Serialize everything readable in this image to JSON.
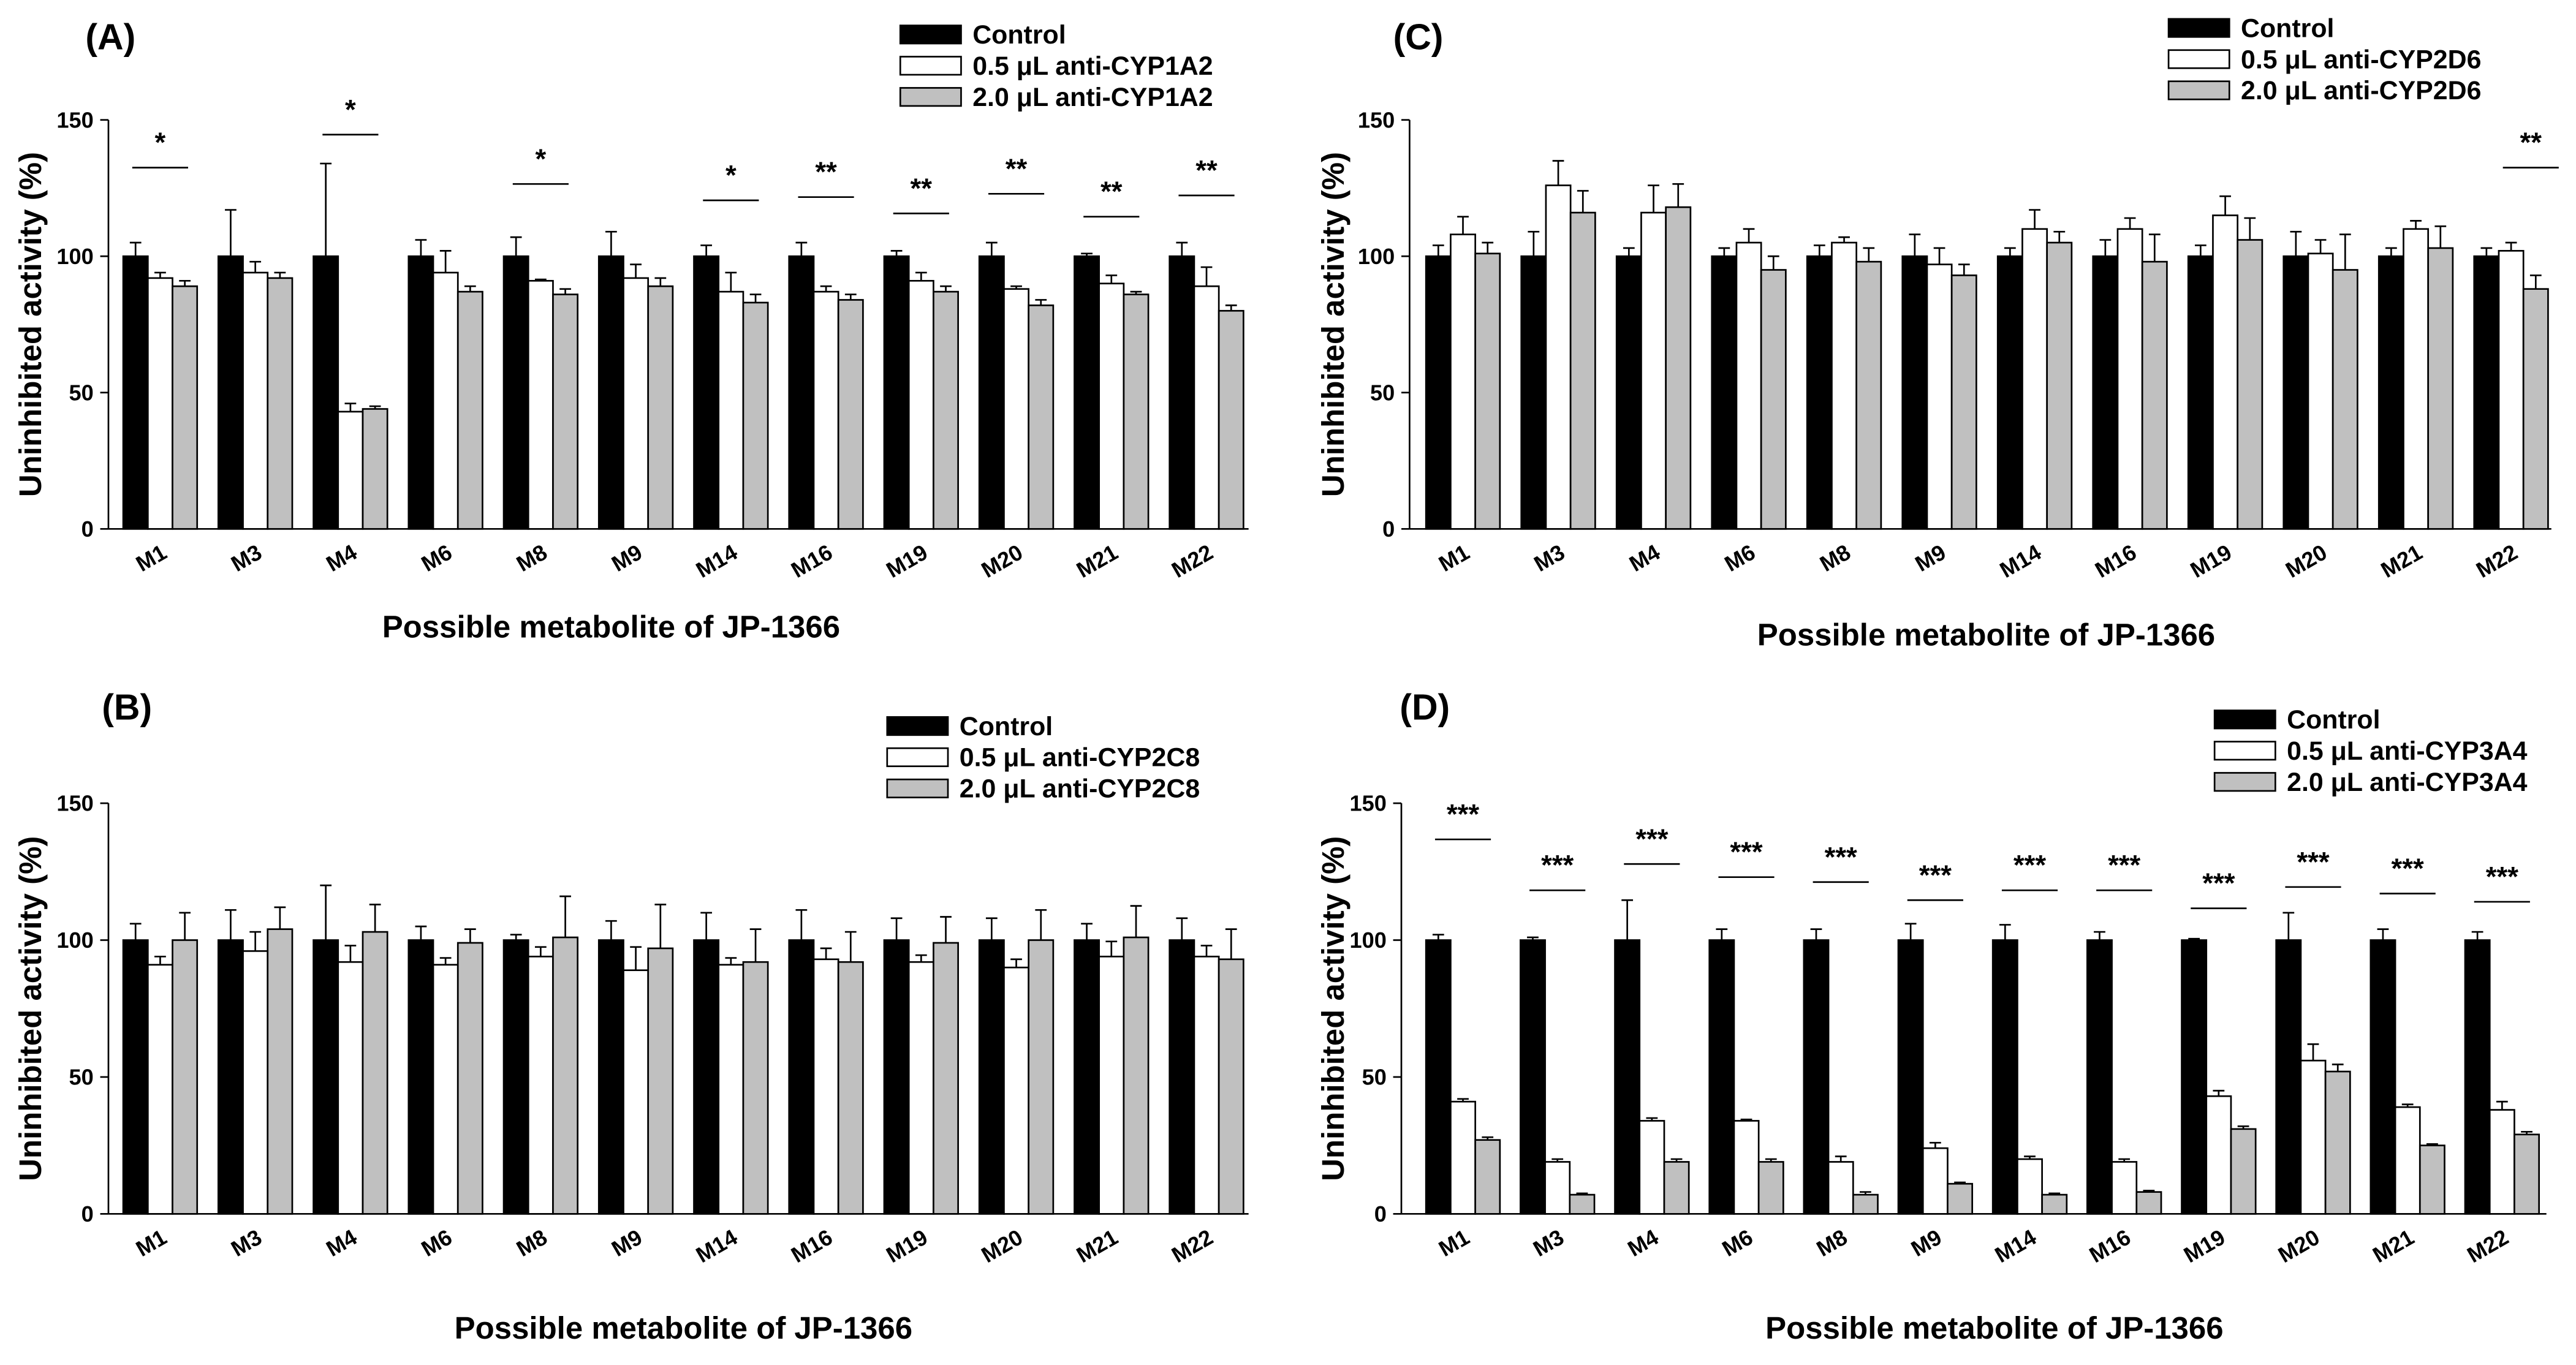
{
  "chart_data": [
    {
      "panel_label": "(A)",
      "type": "bar",
      "categories": [
        "M1",
        "M3",
        "M4",
        "M6",
        "M8",
        "M9",
        "M14",
        "M16",
        "M19",
        "M20",
        "M21",
        "M22"
      ],
      "xlabel": "Possible metabolite of JP-1366",
      "ylabel": "Uninhibited activity (%)",
      "ylim": [
        0,
        150
      ],
      "yticks": [
        0,
        50,
        100,
        150
      ],
      "grid": false,
      "legend_position": "top-right",
      "series": [
        {
          "name": "Control",
          "color": "#000000",
          "values": [
            100,
            100,
            100,
            100,
            100,
            100,
            100,
            100,
            100,
            100,
            100,
            100
          ],
          "errors": [
            5,
            17,
            34,
            6,
            7,
            9,
            4,
            5,
            2,
            5,
            1,
            5
          ]
        },
        {
          "name": "0.5 μL anti-CYP1A2",
          "color": "#ffffff",
          "values": [
            92,
            94,
            43,
            94,
            91,
            92,
            87,
            87,
            91,
            88,
            90,
            89
          ],
          "errors": [
            2,
            4,
            3,
            8,
            0.5,
            5,
            7,
            2,
            3,
            1,
            3,
            7
          ]
        },
        {
          "name": "2.0 μL anti-CYP1A2",
          "color": "#c0c0c0",
          "values": [
            89,
            92,
            44,
            87,
            86,
            89,
            83,
            84,
            87,
            82,
            86,
            80
          ],
          "errors": [
            2,
            2,
            1,
            2,
            2,
            3,
            3,
            2,
            2,
            2,
            1,
            2
          ]
        }
      ],
      "significance": [
        "*",
        null,
        "*",
        null,
        "*",
        null,
        "*",
        "**",
        "**",
        "**",
        "**",
        "**"
      ]
    },
    {
      "panel_label": "(B)",
      "type": "bar",
      "categories": [
        "M1",
        "M3",
        "M4",
        "M6",
        "M8",
        "M9",
        "M14",
        "M16",
        "M19",
        "M20",
        "M21",
        "M22"
      ],
      "xlabel": "Possible metabolite of JP-1366",
      "ylabel": "Uninhibited activity (%)",
      "ylim": [
        0,
        150
      ],
      "yticks": [
        0,
        50,
        100,
        150
      ],
      "grid": false,
      "legend_position": "top-right",
      "series": [
        {
          "name": "Control",
          "color": "#000000",
          "values": [
            100,
            100,
            100,
            100,
            100,
            100,
            100,
            100,
            100,
            100,
            100,
            100
          ],
          "errors": [
            6,
            11,
            20,
            5,
            2,
            7,
            10,
            11,
            8,
            8,
            6,
            8
          ]
        },
        {
          "name": "0.5 μL anti-CYP2C8",
          "color": "#ffffff",
          "values": [
            91,
            96,
            92,
            91,
            94,
            89,
            91,
            93,
            92,
            90,
            94,
            94
          ],
          "errors": [
            3,
            7,
            6,
            2.5,
            3.5,
            8.5,
            2.5,
            4,
            2.5,
            3,
            5.5,
            4
          ]
        },
        {
          "name": "2.0 μL anti-CYP2C8",
          "color": "#c0c0c0",
          "values": [
            100,
            104,
            103,
            99,
            101,
            97,
            92,
            92,
            99,
            100,
            101,
            93
          ],
          "errors": [
            10,
            8,
            10,
            5,
            15,
            16,
            12,
            11,
            9.5,
            11,
            11.5,
            11
          ]
        }
      ],
      "significance": [
        null,
        null,
        null,
        null,
        null,
        null,
        null,
        null,
        null,
        null,
        null,
        null
      ]
    },
    {
      "panel_label": "(C)",
      "type": "bar",
      "categories": [
        "M1",
        "M3",
        "M4",
        "M6",
        "M8",
        "M9",
        "M14",
        "M16",
        "M19",
        "M20",
        "M21",
        "M22"
      ],
      "xlabel": "Possible metabolite of JP-1366",
      "ylabel": "Uninhibited activity (%)",
      "ylim": [
        0,
        150
      ],
      "yticks": [
        0,
        50,
        100,
        150
      ],
      "grid": false,
      "legend_position": "top-right",
      "series": [
        {
          "name": "Control",
          "color": "#000000",
          "values": [
            100,
            100,
            100,
            100,
            100,
            100,
            100,
            100,
            100,
            100,
            100,
            100
          ],
          "errors": [
            4,
            9,
            3,
            3,
            4,
            8,
            3,
            6,
            4,
            9,
            3,
            3
          ]
        },
        {
          "name": "0.5 μL anti-CYP2D6",
          "color": "#ffffff",
          "values": [
            108,
            126,
            116,
            105,
            105,
            97,
            110,
            110,
            115,
            101,
            110,
            102
          ],
          "errors": [
            6.5,
            9,
            10,
            5,
            2,
            6,
            7,
            4,
            7,
            5,
            3,
            3
          ]
        },
        {
          "name": "2.0 μL anti-CYP2D6",
          "color": "#c0c0c0",
          "values": [
            101,
            116,
            118,
            95,
            98,
            93,
            105,
            98,
            106,
            95,
            103,
            88
          ],
          "errors": [
            4,
            8,
            8.5,
            5,
            5,
            4,
            4,
            10,
            8,
            13,
            8,
            5
          ]
        }
      ],
      "significance": [
        null,
        null,
        null,
        null,
        null,
        null,
        null,
        null,
        null,
        null,
        null,
        "**"
      ]
    },
    {
      "panel_label": "(D)",
      "type": "bar",
      "categories": [
        "M1",
        "M3",
        "M4",
        "M6",
        "M8",
        "M9",
        "M14",
        "M16",
        "M19",
        "M20",
        "M21",
        "M22"
      ],
      "xlabel": "Possible metabolite of JP-1366",
      "ylabel": "Uninhibited activity (%)",
      "ylim": [
        0,
        150
      ],
      "yticks": [
        0,
        50,
        100,
        150
      ],
      "grid": false,
      "legend_position": "top-right",
      "series": [
        {
          "name": "Control",
          "color": "#000000",
          "values": [
            100,
            100,
            100,
            100,
            100,
            100,
            100,
            100,
            100,
            100,
            100,
            100
          ],
          "errors": [
            2,
            1,
            14.6,
            4,
            4,
            6,
            5.6,
            3,
            0.5,
            10,
            4,
            3
          ]
        },
        {
          "name": "0.5 μL anti-CYP3A4",
          "color": "#ffffff",
          "values": [
            41,
            19,
            34,
            34,
            19,
            24,
            20,
            19,
            43,
            56,
            39,
            38
          ],
          "errors": [
            1,
            1,
            1,
            0.5,
            2,
            2,
            1,
            1,
            2,
            6,
            1,
            3
          ]
        },
        {
          "name": "2.0 μL anti-CYP3A4",
          "color": "#c0c0c0",
          "values": [
            27,
            7,
            19,
            19,
            7,
            11,
            7,
            8,
            31,
            52,
            25,
            29
          ],
          "errors": [
            1,
            0.5,
            1,
            1,
            1,
            0.5,
            0.5,
            0.5,
            1,
            2.6,
            0.5,
            1
          ]
        }
      ],
      "significance": [
        "***",
        "***",
        "***",
        "***",
        "***",
        "***",
        "***",
        "***",
        "***",
        "***",
        "***",
        "***"
      ]
    }
  ]
}
